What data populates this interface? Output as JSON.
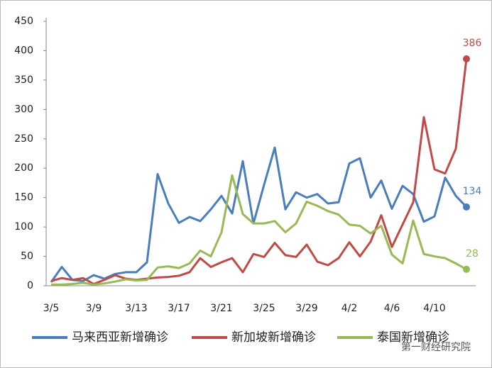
{
  "chart_data": {
    "type": "line",
    "categories": [
      "3/5",
      null,
      null,
      null,
      "3/9",
      null,
      null,
      null,
      "3/13",
      null,
      null,
      null,
      "3/17",
      null,
      null,
      null,
      "3/21",
      null,
      null,
      null,
      "3/25",
      null,
      null,
      null,
      "3/29",
      null,
      null,
      null,
      "4/2",
      null,
      null,
      null,
      "4/6",
      null,
      null,
      null,
      "4/10",
      null,
      null,
      null
    ],
    "ylim": [
      0,
      450
    ],
    "yticks": [
      0,
      50,
      100,
      150,
      200,
      250,
      300,
      350,
      400,
      450
    ],
    "grid": false,
    "legend": "bottom",
    "end_labels": true,
    "watermark": "第一财经研究院",
    "series": [
      {
        "name": "马来西亚新增确诊",
        "color": "#4a7ebb",
        "values": [
          6,
          32,
          10,
          8,
          18,
          12,
          20,
          23,
          23,
          40,
          190,
          140,
          107,
          117,
          110,
          130,
          153,
          123,
          212,
          106,
          172,
          235,
          130,
          159,
          150,
          156,
          140,
          142,
          208,
          217,
          150,
          179,
          131,
          170,
          156,
          109,
          118,
          184,
          153,
          134
        ]
      },
      {
        "name": "新加坡新增确诊",
        "color": "#be4b48",
        "values": [
          8,
          13,
          10,
          13,
          3,
          10,
          18,
          12,
          10,
          12,
          14,
          15,
          17,
          23,
          47,
          32,
          40,
          47,
          23,
          54,
          49,
          73,
          52,
          49,
          70,
          41,
          35,
          47,
          74,
          50,
          75,
          120,
          66,
          104,
          142,
          287,
          198,
          191,
          233,
          386
        ]
      },
      {
        "name": "泰国新增确诊",
        "color": "#98b954",
        "values": [
          2,
          2,
          3,
          5,
          2,
          4,
          7,
          11,
          9,
          10,
          31,
          33,
          30,
          38,
          60,
          50,
          91,
          188,
          122,
          106,
          106,
          110,
          91,
          106,
          143,
          136,
          127,
          121,
          104,
          102,
          89,
          102,
          53,
          38,
          111,
          54,
          50,
          47,
          38,
          28
        ]
      }
    ]
  }
}
